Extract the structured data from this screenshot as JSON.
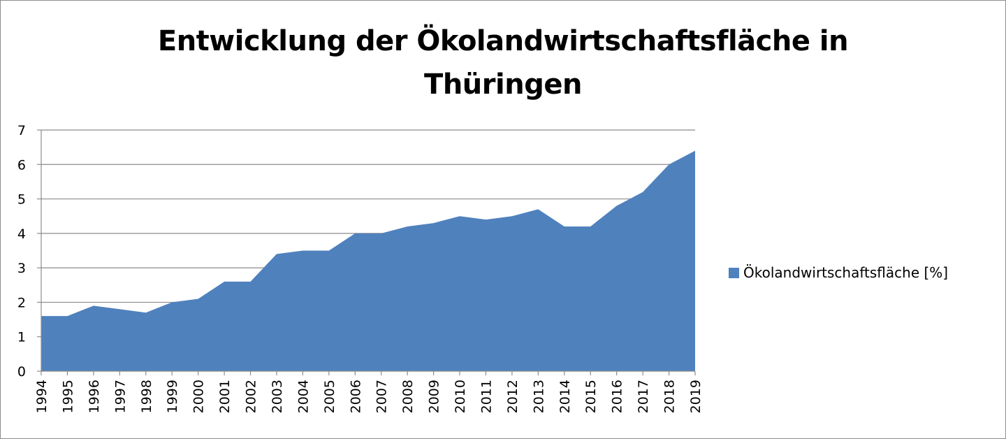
{
  "chart_data": {
    "type": "area",
    "title": "Entwicklung der Ökolandwirtschaftsfläche in Thüringen",
    "title_lines": [
      "Entwicklung der Ökolandwirtschaftsfläche in",
      "Thüringen"
    ],
    "xlabel": "",
    "ylabel": "",
    "x": [
      "1994",
      "1995",
      "1996",
      "1997",
      "1998",
      "1999",
      "2000",
      "2001",
      "2002",
      "2003",
      "2004",
      "2005",
      "2006",
      "2007",
      "2008",
      "2009",
      "2010",
      "2011",
      "2012",
      "2013",
      "2014",
      "2015",
      "2016",
      "2017",
      "2018",
      "2019"
    ],
    "series": [
      {
        "name": "Ökolandwirtschaftsfläche [%]",
        "color": "#4f81bd",
        "values": [
          1.6,
          1.6,
          1.9,
          1.8,
          1.7,
          2.0,
          2.1,
          2.6,
          2.6,
          3.4,
          3.5,
          3.5,
          4.0,
          4.0,
          4.2,
          4.3,
          4.5,
          4.4,
          4.5,
          4.7,
          4.2,
          4.2,
          4.8,
          5.2,
          6.0,
          6.4
        ]
      }
    ],
    "yticks": [
      "0",
      "1",
      "2",
      "3",
      "4",
      "5",
      "6",
      "7"
    ],
    "ylim": [
      0,
      7
    ],
    "grid": true,
    "legend_position": "right"
  }
}
